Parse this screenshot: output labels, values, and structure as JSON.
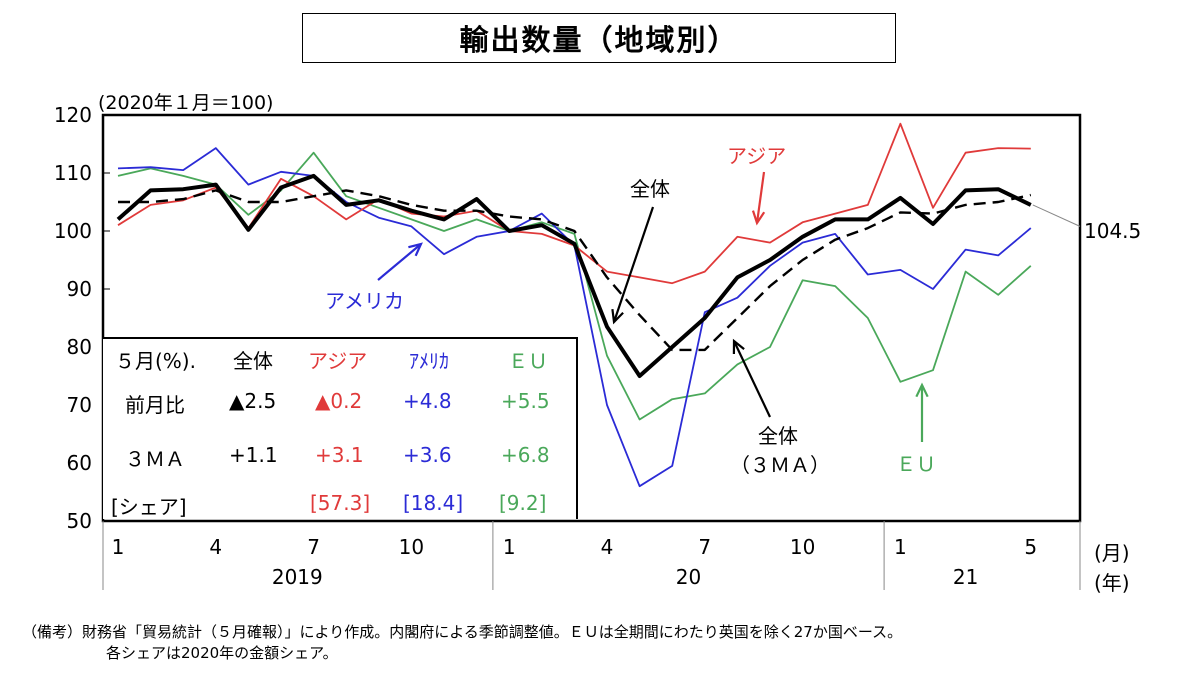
{
  "title": "輸出数量（地域別）",
  "y_unit_label": "(2020年１月＝100)",
  "last_value_label": "104.5",
  "unit_month": "(月)",
  "unit_year": "(年)",
  "series_labels": {
    "asia": "アジア",
    "usa": "アメリカ",
    "total": "全体",
    "total_3ma_line1": "全体",
    "total_3ma_line2": "（３ＭＡ）",
    "eu": "ＥＵ"
  },
  "colors": {
    "asia": "#e03a3a",
    "usa": "#2b2bd6",
    "eu": "#4aa85a",
    "total": "#000000"
  },
  "legend_table": {
    "header": [
      "５月(%).",
      "全体",
      "アジア",
      "ｱﾒﾘｶ",
      "ＥＵ"
    ],
    "rows": [
      [
        "前月比",
        "▲2.5",
        "▲0.2",
        "+4.8",
        "+5.5"
      ],
      [
        "３ＭＡ",
        "+1.1",
        "+3.1",
        "+3.6",
        "+6.8"
      ],
      [
        "[シェア]",
        "",
        "[57.3]",
        "[18.4]",
        "[9.2]"
      ]
    ]
  },
  "notes": [
    "（備考）財務省「貿易統計（５月確報）」により作成。内閣府による季節調整値。ＥＵは全期間にわたり英国を除く27か国ベース。",
    "各シェアは2020年の金額シェア。"
  ],
  "chart_data": {
    "type": "line",
    "title": "輸出数量（地域別）",
    "ylabel": "(2020年１月＝100)",
    "ylim": [
      50,
      120
    ],
    "yticks": [
      "120",
      "110",
      "100",
      "90",
      "80",
      "70",
      "60",
      "50"
    ],
    "xticks": [
      {
        "i": 0,
        "label": "1"
      },
      {
        "i": 3,
        "label": "4"
      },
      {
        "i": 6,
        "label": "7"
      },
      {
        "i": 9,
        "label": "10"
      },
      {
        "i": 12,
        "label": "1"
      },
      {
        "i": 15,
        "label": "4"
      },
      {
        "i": 18,
        "label": "7"
      },
      {
        "i": 21,
        "label": "10"
      },
      {
        "i": 24,
        "label": "1"
      },
      {
        "i": 28,
        "label": "5"
      }
    ],
    "years": [
      {
        "label": "2019",
        "from": 0,
        "to": 11
      },
      {
        "label": "20",
        "from": 12,
        "to": 23
      },
      {
        "label": "21",
        "from": 24,
        "to": 28
      }
    ],
    "series": [
      {
        "name": "アジア",
        "key": "asia",
        "values": [
          101.0,
          104.5,
          105.3,
          107.5,
          100.5,
          109.0,
          106.0,
          102.0,
          105.5,
          103.0,
          102.5,
          103.5,
          100.0,
          99.5,
          97.5,
          93.0,
          92.0,
          91.0,
          93.0,
          99.0,
          98.0,
          101.5,
          103.0,
          104.5,
          118.5,
          104.0,
          113.5,
          114.3,
          114.2
        ]
      },
      {
        "name": "アメリカ",
        "key": "usa",
        "values": [
          110.8,
          111.0,
          110.5,
          114.3,
          108.0,
          110.2,
          109.5,
          105.0,
          102.3,
          100.8,
          96.0,
          99.0,
          100.0,
          103.0,
          97.5,
          70.0,
          56.0,
          59.5,
          86.0,
          88.5,
          94.0,
          98.0,
          99.5,
          92.5,
          93.3,
          90.0,
          96.8,
          95.8,
          100.5
        ]
      },
      {
        "name": "ＥＵ",
        "key": "eu",
        "values": [
          109.5,
          110.8,
          109.5,
          108.0,
          102.8,
          107.0,
          113.5,
          106.0,
          104.0,
          102.0,
          100.0,
          102.0,
          100.0,
          101.5,
          99.5,
          78.5,
          67.5,
          71.0,
          72.0,
          77.0,
          80.0,
          91.5,
          90.5,
          85.0,
          74.0,
          76.0,
          93.0,
          89.0,
          94.0
        ]
      },
      {
        "name": "全体",
        "key": "total",
        "values": [
          102.0,
          107.0,
          107.2,
          108.0,
          100.2,
          107.5,
          109.5,
          104.5,
          105.3,
          103.5,
          102.0,
          105.5,
          100.0,
          101.0,
          97.8,
          83.5,
          75.0,
          80.0,
          85.0,
          92.0,
          95.0,
          99.0,
          102.0,
          102.0,
          105.7,
          101.2,
          107.0,
          107.2,
          104.5
        ]
      },
      {
        "name": "全体（３ＭＡ）",
        "key": "total3ma",
        "style": "dashed",
        "values": [
          105.0,
          105.0,
          105.5,
          107.0,
          105.0,
          105.0,
          106.0,
          107.0,
          106.0,
          104.5,
          103.5,
          103.5,
          102.5,
          102.0,
          100.0,
          92.0,
          85.5,
          79.5,
          79.5,
          85.0,
          90.5,
          95.0,
          98.5,
          100.5,
          103.2,
          103.0,
          104.5,
          105.0,
          106.2
        ]
      }
    ]
  }
}
